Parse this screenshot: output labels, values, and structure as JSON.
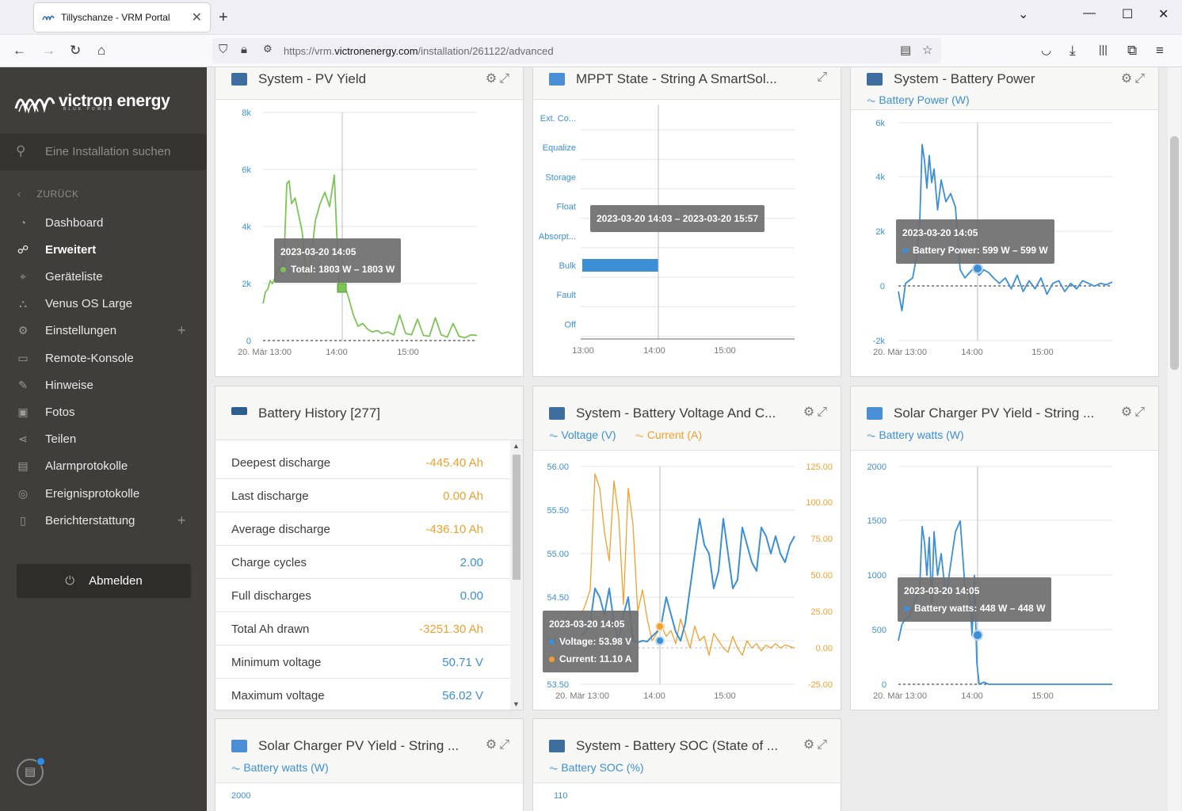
{
  "browser": {
    "tab_title": "Tillyschanze - VRM Portal",
    "url_prefix": "https://vrm.",
    "url_domain": "victronenergy.com",
    "url_path": "/installation/261122/advanced"
  },
  "sidebar": {
    "logo_text": "victron energy",
    "logo_sub": "BLUE POWER",
    "search_placeholder": "Eine Installation suchen",
    "back_label": "ZURÜCK",
    "items": [
      {
        "label": "Dashboard",
        "icon": "gauge-icon"
      },
      {
        "label": "Erweitert",
        "icon": "graph-nodes-icon",
        "active": true
      },
      {
        "label": "Geräteliste",
        "icon": "location-pin-icon"
      },
      {
        "label": "Venus OS Large",
        "icon": "nodes-icon"
      },
      {
        "label": "Einstellungen",
        "icon": "gear-icon",
        "expand": "+"
      },
      {
        "label": "Remote-Konsole",
        "icon": "console-icon"
      },
      {
        "label": "Hinweise",
        "icon": "edit-note-icon"
      },
      {
        "label": "Fotos",
        "icon": "photo-icon"
      },
      {
        "label": "Teilen",
        "icon": "share-icon"
      },
      {
        "label": "Alarmprotokolle",
        "icon": "alarm-log-icon"
      },
      {
        "label": "Ereignisprotokolle",
        "icon": "event-log-icon"
      },
      {
        "label": "Berichterstattung",
        "icon": "report-icon",
        "expand": "+"
      }
    ],
    "logout_label": "Abmelden"
  },
  "widgets": {
    "pv_yield": {
      "title": "System - PV Yield",
      "tooltip_time": "2023-03-20 14:05",
      "tooltip_line": "Total: 1803 W – 1803 W",
      "y_ticks": [
        "8k",
        "6k",
        "4k",
        "2k",
        "0"
      ],
      "x_ticks": [
        "20. Mär 13:00",
        "14:00",
        "15:00"
      ]
    },
    "mppt_state": {
      "title": "MPPT State - String A SmartSol...",
      "states": [
        "Ext. Co...",
        "Equalize",
        "Storage",
        "Float",
        "Absorpt...",
        "Bulk",
        "Fault",
        "Off"
      ],
      "tooltip": "2023-03-20 14:03 – 2023-03-20 15:57",
      "x_ticks": [
        "13:00",
        "14:00",
        "15:00"
      ]
    },
    "battery_power": {
      "title": "System - Battery Power",
      "legend": "Battery Power (W)",
      "tooltip_time": "2023-03-20 14:05",
      "tooltip_line": "Battery Power: 599 W – 599 W",
      "y_ticks": [
        "6k",
        "4k",
        "2k",
        "0",
        "-2k"
      ],
      "x_ticks": [
        "20. Mär 13:00",
        "14:00",
        "15:00"
      ]
    },
    "battery_history": {
      "title": "Battery History [277]",
      "rows": [
        {
          "label": "Deepest discharge",
          "value": "-445.40 Ah",
          "color": "#f0a030"
        },
        {
          "label": "Last discharge",
          "value": "0.00 Ah",
          "color": "#f0a030"
        },
        {
          "label": "Average discharge",
          "value": "-436.10 Ah",
          "color": "#f0a030"
        },
        {
          "label": "Charge cycles",
          "value": "2.00",
          "color": "#3c8fd4"
        },
        {
          "label": "Full discharges",
          "value": "0.00",
          "color": "#3c8fd4"
        },
        {
          "label": "Total Ah drawn",
          "value": "-3251.30 Ah",
          "color": "#f0a030"
        },
        {
          "label": "Minimum voltage",
          "value": "50.71 V",
          "color": "#3c8fd4"
        },
        {
          "label": "Maximum voltage",
          "value": "56.02 V",
          "color": "#3c8fd4"
        }
      ]
    },
    "voltage_current": {
      "title": "System - Battery Voltage And C...",
      "legend_voltage": "Voltage (V)",
      "legend_current": "Current (A)",
      "tooltip_time": "2023-03-20 14:05",
      "tooltip_voltage": "Voltage: 53.98 V",
      "tooltip_current": "Current: 11.10 A",
      "y_left": [
        "56.00",
        "55.50",
        "55.00",
        "54.50",
        "54.00",
        "53.50"
      ],
      "y_right": [
        "125.00",
        "100.00",
        "75.00",
        "50.00",
        "25.00",
        "0.00",
        "-25.00"
      ],
      "x_ticks": [
        "20. Mär 13:00",
        "14:00",
        "15:00"
      ]
    },
    "solar_pv_1": {
      "title": "Solar Charger PV Yield - String ...",
      "legend": "Battery watts (W)",
      "tooltip_time": "2023-03-20 14:05",
      "tooltip_line": "Battery watts: 448 W – 448 W",
      "y_ticks": [
        "2000",
        "1500",
        "1000",
        "500",
        "0"
      ],
      "x_ticks": [
        "20. Mär 13:00",
        "14:00",
        "15:00"
      ]
    },
    "solar_pv_2": {
      "title": "Solar Charger PV Yield - String ...",
      "legend": "Battery watts (W)",
      "y_top": "2000"
    },
    "battery_soc": {
      "title": "System - Battery SOC (State of ...",
      "legend": "Battery SOC (%)",
      "y_top": "110"
    }
  },
  "colors": {
    "green": "#7dc457",
    "blue": "#3c8fd4",
    "orange": "#f0a030",
    "sidebar_bg": "#3f3e3a"
  }
}
